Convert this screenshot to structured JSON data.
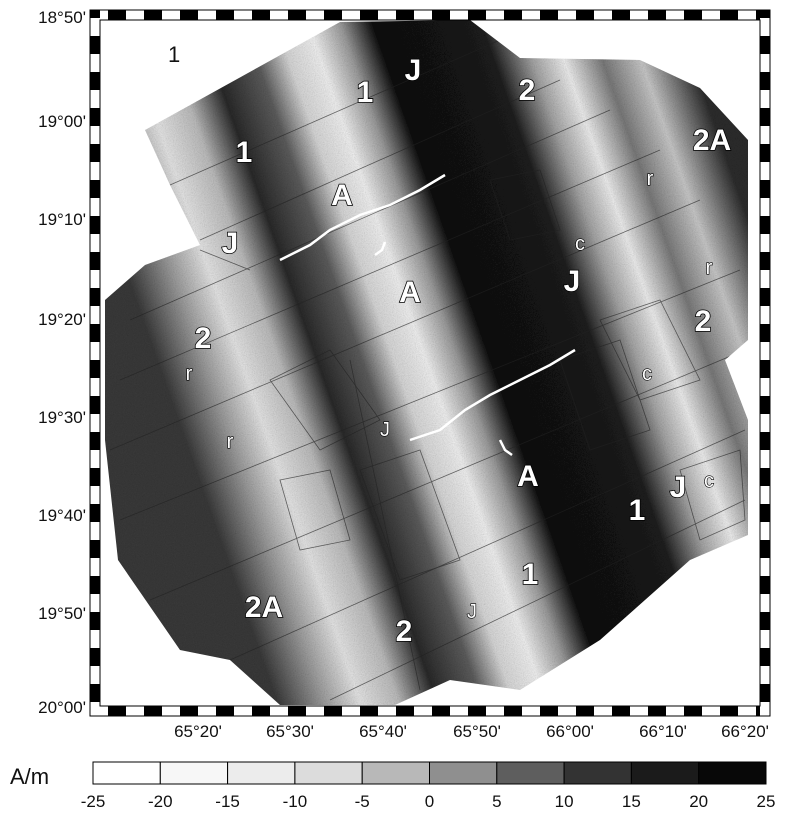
{
  "map": {
    "plain_label": "1",
    "latitude_labels": [
      "18°50'",
      "19°00'",
      "19°10'",
      "19°20'",
      "19°30'",
      "19°40'",
      "19°50'",
      "20°00'"
    ],
    "longitude_labels": [
      "65°20'",
      "65°30'",
      "65°40'",
      "65°50'",
      "66°00'",
      "66°10'",
      "66°20'"
    ],
    "anomaly_labels": [
      {
        "text": "1"
      },
      {
        "text": "J"
      },
      {
        "text": "2"
      },
      {
        "text": "2A"
      },
      {
        "text": "1"
      },
      {
        "text": "A"
      },
      {
        "text": "J"
      },
      {
        "text": "A"
      },
      {
        "text": "J"
      },
      {
        "text": "2"
      },
      {
        "text": "2"
      },
      {
        "text": "A"
      },
      {
        "text": "J"
      },
      {
        "text": "1"
      },
      {
        "text": "1"
      },
      {
        "text": "2A"
      },
      {
        "text": "2"
      }
    ],
    "small_labels": [
      {
        "text": "r"
      },
      {
        "text": "c"
      },
      {
        "text": "r"
      },
      {
        "text": "r"
      },
      {
        "text": "c"
      },
      {
        "text": "r"
      },
      {
        "text": "J"
      },
      {
        "text": "c"
      },
      {
        "text": "J"
      }
    ]
  },
  "scale": {
    "unit": "A/m",
    "tick_labels": [
      "-25",
      "-20",
      "-15",
      "-10",
      "-5",
      "0",
      "5",
      "10",
      "15",
      "20",
      "25"
    ]
  }
}
